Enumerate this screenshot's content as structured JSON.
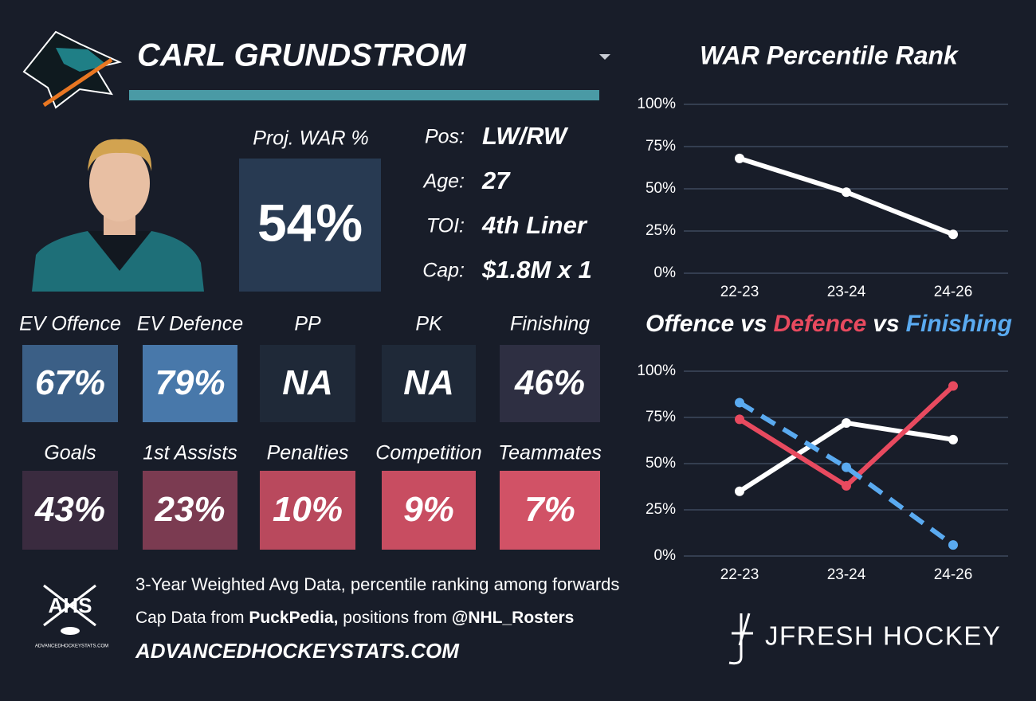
{
  "header": {
    "name": "CARL GRUNDSTROM"
  },
  "proj": {
    "label": "Proj. WAR %",
    "value": "54%"
  },
  "info": [
    {
      "label": "Pos:",
      "value": "LW/RW"
    },
    {
      "label": "Age:",
      "value": "27"
    },
    {
      "label": "TOI:",
      "value": "4th Liner"
    },
    {
      "label": "Cap:",
      "value": "$1.8M x 1"
    }
  ],
  "tiles": [
    [
      {
        "label": "EV Offence",
        "value": "67%",
        "color": "#3b5f86"
      },
      {
        "label": "EV Defence",
        "value": "79%",
        "color": "#4878aa"
      },
      {
        "label": "PP",
        "value": "NA",
        "color": "#1f2938"
      },
      {
        "label": "PK",
        "value": "NA",
        "color": "#1f2938"
      },
      {
        "label": "Finishing",
        "value": "46%",
        "color": "#2e2f42"
      }
    ],
    [
      {
        "label": "Goals",
        "value": "43%",
        "color": "#3a2b3f"
      },
      {
        "label": "1st Assists",
        "value": "23%",
        "color": "#7b3b51"
      },
      {
        "label": "Penalties",
        "value": "10%",
        "color": "#b9495d"
      },
      {
        "label": "Competition",
        "value": "9%",
        "color": "#c84d61"
      },
      {
        "label": "Teammates",
        "value": "7%",
        "color": "#d15266"
      }
    ]
  ],
  "footer": {
    "line1": "3-Year Weighted Avg Data, percentile ranking among forwards",
    "line2": [
      "Cap Data from ",
      "PuckPedia,",
      " positions from ",
      "@NHL_Rosters"
    ],
    "site": "ADVANCEDHOCKEYSTATS.COM",
    "logo": "AHS",
    "logo_sub": "ADVANCEDHOCKEYSTATS.COM",
    "brand": "JFRESH HOCKEY"
  },
  "chart_data": [
    {
      "type": "line",
      "title": "WAR Percentile Rank",
      "categories": [
        "22-23",
        "23-24",
        "24-26"
      ],
      "series": [
        {
          "color": "#ffffff",
          "values": [
            68,
            48,
            23
          ]
        }
      ],
      "ylim": [
        0,
        100
      ],
      "yticks": [
        {
          "value": 0,
          "label": "0%"
        },
        {
          "value": 25,
          "label": "25%"
        },
        {
          "value": 50,
          "label": "50%"
        },
        {
          "value": 75,
          "label": "75%"
        },
        {
          "value": 100,
          "label": "100%"
        }
      ],
      "grid": true
    },
    {
      "type": "line",
      "joiner": "vs",
      "categories": [
        "22-23",
        "23-24",
        "24-26"
      ],
      "series": [
        {
          "name": "Offence",
          "color": "#ffffff",
          "values": [
            35,
            72,
            63
          ]
        },
        {
          "name": "Defence",
          "color": "#e84a5f",
          "values": [
            74,
            38,
            92
          ]
        },
        {
          "name": "Finishing",
          "color": "#5aaaf0",
          "values": [
            83,
            48,
            6
          ],
          "dashed": true
        }
      ],
      "ylim": [
        0,
        100
      ],
      "yticks": [
        {
          "value": 0,
          "label": "0%"
        },
        {
          "value": 25,
          "label": "25%"
        },
        {
          "value": 50,
          "label": "50%"
        },
        {
          "value": 75,
          "label": "75%"
        },
        {
          "value": 100,
          "label": "100%"
        }
      ],
      "grid": true
    }
  ]
}
